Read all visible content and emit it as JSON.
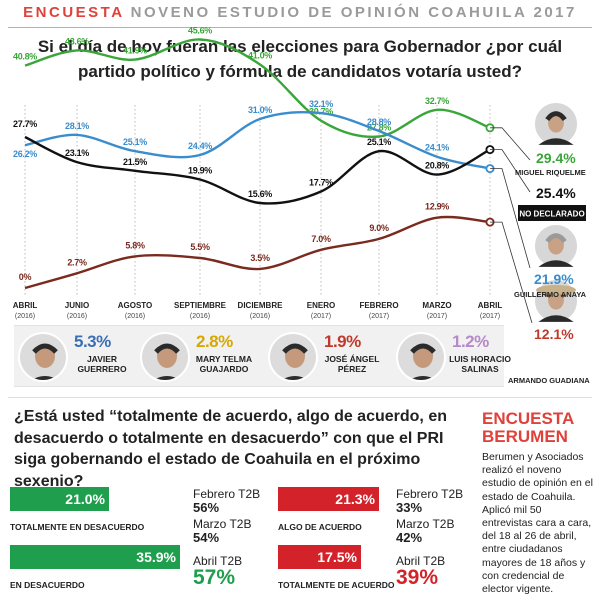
{
  "header": {
    "keyword": "ENCUESTA",
    "rest": "NOVENO ESTUDIO DE OPINIÓN COAHUILA 2017"
  },
  "question1": "Si el día de hoy fueran las elecciones para Gobernador ¿por cuál partido político y fórmula de candidatos votaría usted?",
  "chart_data": {
    "type": "line",
    "categories": [
      {
        "month": "ABRIL",
        "year": "(2016)"
      },
      {
        "month": "JUNIO",
        "year": "(2016)"
      },
      {
        "month": "AGOSTO",
        "year": "(2016)"
      },
      {
        "month": "SEPTIEMBRE",
        "year": "(2016)"
      },
      {
        "month": "DICIEMBRE",
        "year": "(2016)"
      },
      {
        "month": "ENERO",
        "year": "(2017)"
      },
      {
        "month": "FEBRERO",
        "year": "(2017)"
      },
      {
        "month": "MARZO",
        "year": "(2017)"
      },
      {
        "month": "ABRIL",
        "year": "(2017)"
      }
    ],
    "ylim": [
      0,
      50
    ],
    "grid": "vertical",
    "series": [
      {
        "key": "green",
        "color": "#3aa63a",
        "values": [
          40.8,
          43.6,
          41.9,
          45.6,
          41.0,
          30.7,
          27.8,
          32.7,
          29.4
        ],
        "labels": [
          "40.8%",
          "43.6%",
          "41.9%",
          "45.6%",
          "41.0%",
          "30.7%",
          "27.8%",
          "32.7%",
          ""
        ]
      },
      {
        "key": "blue",
        "color": "#3a8ccc",
        "values": [
          26.2,
          28.1,
          25.1,
          24.4,
          31.0,
          32.1,
          28.8,
          24.1,
          21.9
        ],
        "labels": [
          "26.2%",
          "28.1%",
          "25.1%",
          "24.4%",
          "31.0%",
          "32.1%",
          "28.8%",
          "24.1%",
          ""
        ]
      },
      {
        "key": "black",
        "color": "#111111",
        "values": [
          27.7,
          23.1,
          21.5,
          19.9,
          15.6,
          17.7,
          25.1,
          20.8,
          25.4
        ],
        "labels": [
          "27.7%",
          "23.1%",
          "21.5%",
          "19.9%",
          "15.6%",
          "17.7%",
          "25.1%",
          "20.8%",
          ""
        ]
      },
      {
        "key": "red",
        "color": "#7a2a1e",
        "values": [
          0,
          2.7,
          5.8,
          5.5,
          3.5,
          7.0,
          9.0,
          12.9,
          12.1
        ],
        "labels": [
          "0%",
          "2.7%",
          "5.8%",
          "5.5%",
          "3.5%",
          "7.0%",
          "9.0%",
          "12.9%",
          ""
        ]
      }
    ],
    "end_labels": [
      {
        "value": "29.4%",
        "name": "MIGUEL RIQUELME",
        "color": "#3aa63a"
      },
      {
        "value": "25.4%",
        "name": "NO DECLARADO",
        "color": "#111111"
      },
      {
        "value": "21.9%",
        "name": "GUILLERMO ANAYA",
        "color": "#3a8ccc"
      },
      {
        "value": "12.1%",
        "name": "ARMANDO GUADIANA",
        "color": "#c0392b"
      }
    ]
  },
  "minor_candidates": [
    {
      "pct": "5.3%",
      "name1": "JAVIER",
      "name2": "GUERRERO",
      "color": "#3a6fb5"
    },
    {
      "pct": "2.8%",
      "name1": "MARY TELMA",
      "name2": "GUAJARDO",
      "color": "#d6a800"
    },
    {
      "pct": "1.9%",
      "name1": "JOSÉ ÁNGEL",
      "name2": "PÉREZ",
      "color": "#c0392b"
    },
    {
      "pct": "1.2%",
      "name1": "LUIS HORACIO",
      "name2": "SALINAS",
      "color": "#b48ac8"
    }
  ],
  "question2": "¿Está usted “totalmente de acuerdo, algo de acuerdo, en desacuerdo o totalmente en desacuerdo” con que el PRI siga gobernando el estado de Coahuila en el próximo sexenio?",
  "opinion": {
    "disagree": {
      "color": "#1f9e4d",
      "bars": [
        {
          "value": 21.0,
          "label": "21.0%",
          "caption": "TOTALMENTE EN DESACUERDO"
        },
        {
          "value": 35.9,
          "label": "35.9%",
          "caption": "EN DESACUERDO"
        }
      ],
      "feb_label": "Febrero T2B",
      "feb_value": "56%",
      "mar_label": "Marzo T2B",
      "mar_value": "54%",
      "apr_label": "Abril T2B",
      "apr_value": "57%"
    },
    "agree": {
      "color": "#d3222a",
      "bars": [
        {
          "value": 21.3,
          "label": "21.3%",
          "caption": "ALGO DE ACUERDO"
        },
        {
          "value": 17.5,
          "label": "17.5%",
          "caption": "TOTALMENTE DE ACUERDO"
        }
      ],
      "feb_label": "Febrero T2B",
      "feb_value": "33%",
      "mar_label": "Marzo T2B",
      "mar_value": "42%",
      "apr_label": "Abril T2B",
      "apr_value": "39%"
    }
  },
  "sidebar": {
    "title1": "ENCUESTA",
    "title2": "BERUMEN",
    "text": "Berumen y Asociados realizó el noveno estudio de opinión en el estado de Coahuila. Aplicó mil 50 entrevistas cara a cara, del 18 al 26 de abril, entre ciudadanos mayores de 18 años y con credencial de elector vigente."
  }
}
